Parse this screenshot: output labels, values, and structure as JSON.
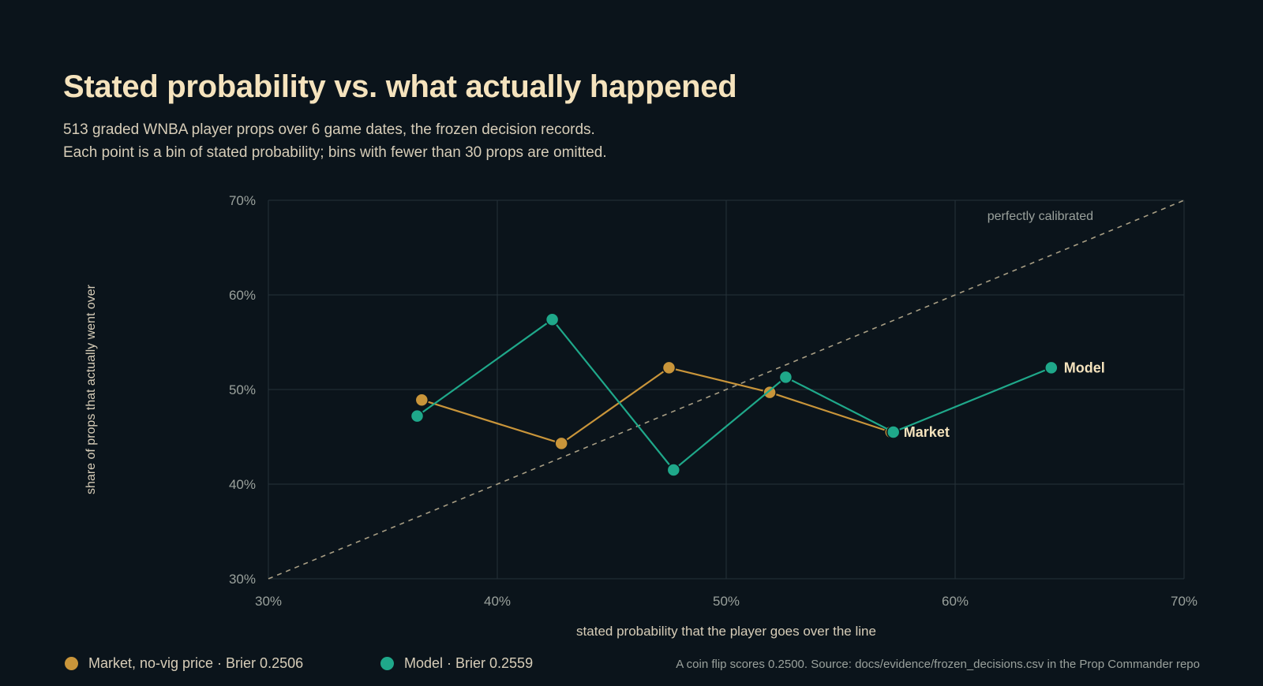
{
  "title": "Stated probability vs. what actually happened",
  "subtitle_lines": [
    "513 graded WNBA player props over 6 game dates, the frozen decision records.",
    "Each point is a bin of stated probability; bins with fewer than 30 props are omitted."
  ],
  "legend": {
    "market": "Market, no-vig price · Brier 0.2506",
    "model": "Model · Brier 0.2559"
  },
  "source": "A coin flip scores 0.2500. Source: docs/evidence/frozen_decisions.csv in the Prop Commander repo",
  "colors": {
    "background": "#0b141b",
    "market": "#c9953a",
    "model": "#1fa88a",
    "grid": "#26323a",
    "diagonal": "#a89e84"
  },
  "chart_data": {
    "type": "line",
    "xlabel": "stated probability that the player goes over the line",
    "ylabel": "share of props that actually went over",
    "xlim": [
      0.3,
      0.7
    ],
    "ylim": [
      0.3,
      0.7
    ],
    "x_ticks": [
      0.3,
      0.4,
      0.5,
      0.6,
      0.7
    ],
    "y_ticks": [
      0.3,
      0.4,
      0.5,
      0.6,
      0.7
    ],
    "x_tick_labels": [
      "30%",
      "40%",
      "50%",
      "60%",
      "70%"
    ],
    "y_tick_labels": [
      "30%",
      "40%",
      "50%",
      "60%",
      "70%"
    ],
    "grid": true,
    "reference_line": {
      "label": "perfectly calibrated",
      "from": [
        0.3,
        0.3
      ],
      "to": [
        0.7,
        0.7
      ]
    },
    "series": [
      {
        "name": "Market",
        "color": "#c9953a",
        "x": [
          0.367,
          0.428,
          0.475,
          0.519,
          0.572
        ],
        "y": [
          0.489,
          0.443,
          0.523,
          0.497,
          0.455
        ]
      },
      {
        "name": "Model",
        "color": "#1fa88a",
        "x": [
          0.365,
          0.424,
          0.477,
          0.526,
          0.573,
          0.642
        ],
        "y": [
          0.472,
          0.574,
          0.415,
          0.513,
          0.455,
          0.523
        ]
      }
    ]
  }
}
